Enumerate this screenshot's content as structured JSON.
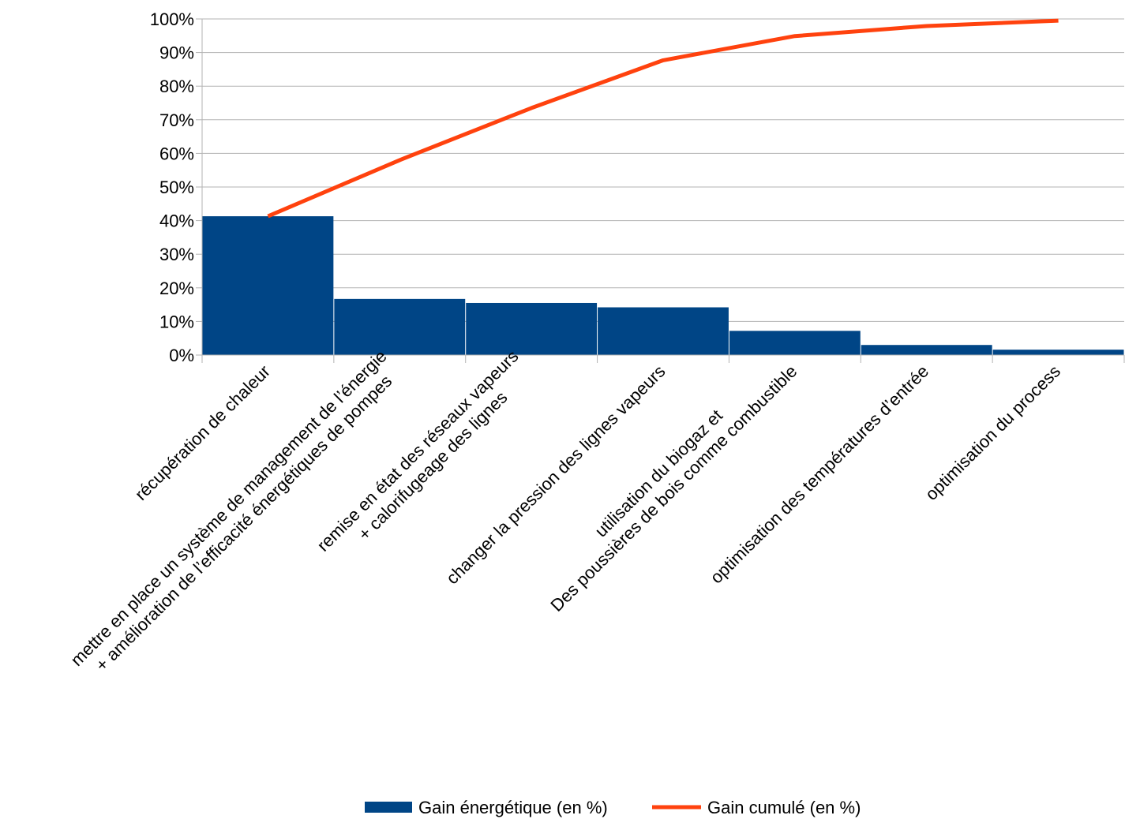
{
  "chart_data": {
    "type": "bar",
    "categories": [
      [
        "récupération de chaleur"
      ],
      [
        "mettre en place un système de management de l’énergie",
        "+ amélioration de l’efficacité énergétiques de pompes"
      ],
      [
        "remise en état des réseaux vapeurs",
        "+ calorifugeage des lignes"
      ],
      [
        "changer la pression des lignes vapeurs"
      ],
      [
        "utilisation du biogaz et",
        "Des poussières de bois comme combustible"
      ],
      [
        "optimisation des températures d’entrée"
      ],
      [
        "optimisation du process"
      ]
    ],
    "series": [
      {
        "name": "Gain énergétique (en %)",
        "type": "bar",
        "color": "#004586",
        "values": [
          41.3,
          16.7,
          15.5,
          14.2,
          7.2,
          3.0,
          1.6
        ]
      },
      {
        "name": "Gain cumulé (en %)",
        "type": "line",
        "color": "#ff420e",
        "values": [
          41.3,
          58.0,
          73.5,
          87.7,
          94.9,
          97.9,
          99.5
        ]
      }
    ],
    "ylim": [
      0,
      100
    ],
    "yticks": [
      "0%",
      "10%",
      "20%",
      "30%",
      "40%",
      "50%",
      "60%",
      "70%",
      "80%",
      "90%",
      "100%"
    ],
    "grid": true,
    "legend": "bottom"
  }
}
